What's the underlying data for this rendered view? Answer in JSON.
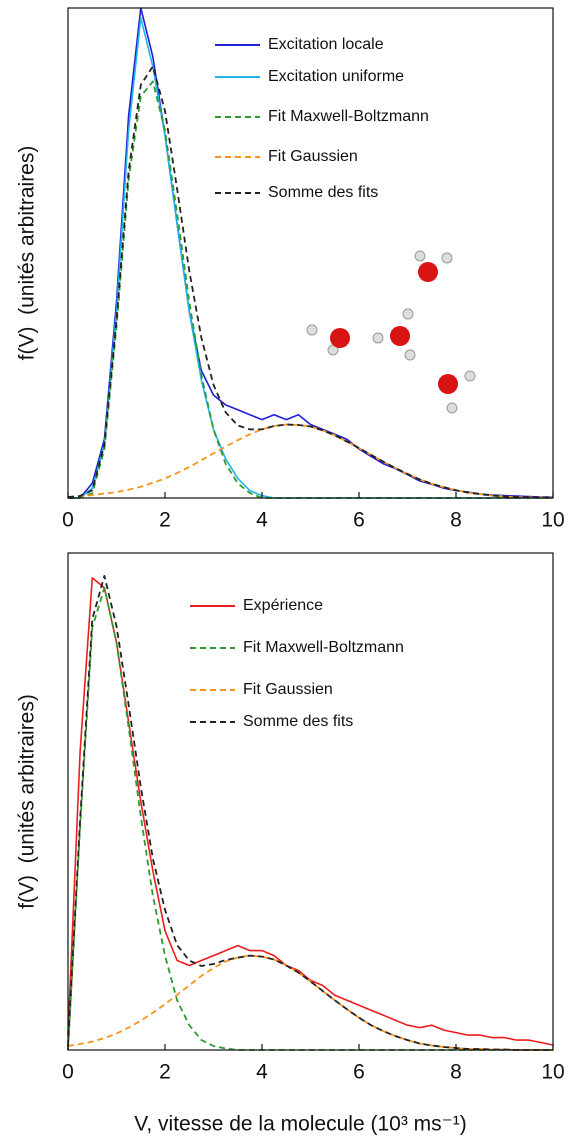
{
  "chart_data": [
    {
      "type": "line",
      "ylabel": "f(V)  (unités arbitraires)",
      "x": [
        0,
        0.25,
        0.5,
        0.75,
        1,
        1.25,
        1.5,
        1.75,
        2,
        2.25,
        2.5,
        2.75,
        3,
        3.25,
        3.5,
        3.75,
        4,
        4.25,
        4.5,
        4.75,
        5,
        5.25,
        5.5,
        5.75,
        6,
        6.25,
        6.5,
        6.75,
        7,
        7.25,
        7.5,
        7.75,
        8,
        8.25,
        8.5,
        8.75,
        9,
        9.25,
        9.5,
        9.75,
        10
      ],
      "xlim": [
        0,
        10
      ],
      "xticks": [
        0,
        2,
        4,
        6,
        8,
        10
      ],
      "ylim": [
        0,
        1
      ],
      "series": [
        {
          "name": "Excitation locale",
          "color": "#1f1fd6",
          "dashed": false,
          "values": [
            0,
            0,
            0.03,
            0.12,
            0.4,
            0.78,
            1.0,
            0.9,
            0.74,
            0.56,
            0.38,
            0.26,
            0.21,
            0.19,
            0.18,
            0.17,
            0.16,
            0.17,
            0.16,
            0.17,
            0.15,
            0.14,
            0.13,
            0.12,
            0.1,
            0.085,
            0.07,
            0.06,
            0.048,
            0.035,
            0.028,
            0.02,
            0.015,
            0.012,
            0.008,
            0.006,
            0.005,
            0.004,
            0.003,
            0.002,
            0.002
          ]
        },
        {
          "name": "Excitation uniforme",
          "color": "#20b4ee",
          "dashed": false,
          "values": [
            0,
            0,
            0.02,
            0.11,
            0.38,
            0.75,
            0.98,
            0.88,
            0.74,
            0.56,
            0.38,
            0.24,
            0.14,
            0.08,
            0.04,
            0.015,
            0.005,
            0,
            0,
            0,
            0,
            0,
            0,
            0,
            0,
            0,
            0,
            0,
            0,
            0,
            0,
            0,
            0,
            0,
            0,
            0,
            0,
            0,
            0,
            0,
            0
          ]
        },
        {
          "name": "Fit Maxwell-Boltzmann",
          "color": "#2e9a2e",
          "dashed": true,
          "values": [
            0,
            0,
            0.01,
            0.1,
            0.35,
            0.65,
            0.82,
            0.85,
            0.75,
            0.58,
            0.4,
            0.25,
            0.14,
            0.07,
            0.03,
            0.01,
            0,
            0,
            0,
            0,
            0,
            0,
            0,
            0,
            0,
            0,
            0,
            0,
            0,
            0,
            0,
            0,
            0,
            0,
            0,
            0,
            0,
            0,
            0,
            0,
            0
          ]
        },
        {
          "name": "Fit Gaussien",
          "color": "#f7941d",
          "dashed": true,
          "values": [
            0.002,
            0.004,
            0.006,
            0.009,
            0.012,
            0.017,
            0.023,
            0.031,
            0.04,
            0.051,
            0.063,
            0.077,
            0.091,
            0.105,
            0.118,
            0.13,
            0.14,
            0.147,
            0.15,
            0.149,
            0.146,
            0.138,
            0.128,
            0.115,
            0.102,
            0.088,
            0.074,
            0.061,
            0.049,
            0.038,
            0.029,
            0.022,
            0.016,
            0.011,
            0.008,
            0.005,
            0.003,
            0.002,
            0.001,
            0.001,
            0.001
          ]
        },
        {
          "name": "Somme des fits",
          "color": "#222222",
          "dashed": true,
          "values": [
            0.002,
            0.004,
            0.016,
            0.109,
            0.362,
            0.667,
            0.843,
            0.881,
            0.79,
            0.631,
            0.463,
            0.327,
            0.231,
            0.175,
            0.148,
            0.14,
            0.14,
            0.147,
            0.15,
            0.149,
            0.146,
            0.138,
            0.128,
            0.115,
            0.102,
            0.088,
            0.074,
            0.061,
            0.049,
            0.038,
            0.029,
            0.022,
            0.016,
            0.011,
            0.008,
            0.005,
            0.003,
            0.002,
            0.001,
            0.001,
            0.001
          ]
        }
      ]
    },
    {
      "type": "line",
      "ylabel": "f(V)  (unités arbitraires)",
      "xlabel": "V, vitesse de la molecule (10³ ms⁻¹)",
      "x": [
        0,
        0.25,
        0.5,
        0.75,
        1,
        1.25,
        1.5,
        1.75,
        2,
        2.25,
        2.5,
        2.75,
        3,
        3.25,
        3.5,
        3.75,
        4,
        4.25,
        4.5,
        4.75,
        5,
        5.25,
        5.5,
        5.75,
        6,
        6.25,
        6.5,
        6.75,
        7,
        7.25,
        7.5,
        7.75,
        8,
        8.25,
        8.5,
        8.75,
        9,
        9.25,
        9.5,
        9.75,
        10
      ],
      "xlim": [
        0,
        10
      ],
      "xticks": [
        0,
        2,
        4,
        6,
        8,
        10
      ],
      "ylim": [
        0,
        1
      ],
      "series": [
        {
          "name": "Expérience",
          "color": "#ee1c1c",
          "dashed": false,
          "values": [
            0.03,
            0.6,
            0.95,
            0.93,
            0.82,
            0.66,
            0.5,
            0.36,
            0.24,
            0.18,
            0.17,
            0.18,
            0.19,
            0.2,
            0.21,
            0.2,
            0.2,
            0.19,
            0.17,
            0.16,
            0.14,
            0.13,
            0.11,
            0.1,
            0.09,
            0.08,
            0.07,
            0.06,
            0.05,
            0.045,
            0.05,
            0.04,
            0.035,
            0.03,
            0.03,
            0.025,
            0.025,
            0.02,
            0.02,
            0.015,
            0.01
          ]
        },
        {
          "name": "Fit Maxwell-Boltzmann",
          "color": "#2e9a2e",
          "dashed": true,
          "values": [
            0,
            0.45,
            0.85,
            0.93,
            0.82,
            0.65,
            0.47,
            0.31,
            0.19,
            0.1,
            0.05,
            0.02,
            0.008,
            0.003,
            0,
            0,
            0,
            0,
            0,
            0,
            0,
            0,
            0,
            0,
            0,
            0,
            0,
            0,
            0,
            0,
            0,
            0,
            0,
            0,
            0,
            0,
            0,
            0,
            0,
            0,
            0
          ]
        },
        {
          "name": "Fit Gaussien",
          "color": "#f7941d",
          "dashed": true,
          "values": [
            0.008,
            0.012,
            0.017,
            0.024,
            0.033,
            0.045,
            0.059,
            0.075,
            0.092,
            0.111,
            0.13,
            0.149,
            0.165,
            0.178,
            0.186,
            0.19,
            0.188,
            0.182,
            0.17,
            0.156,
            0.138,
            0.119,
            0.1,
            0.082,
            0.065,
            0.05,
            0.038,
            0.028,
            0.02,
            0.013,
            0.009,
            0.006,
            0.004,
            0.002,
            0.002,
            0.001,
            0.001,
            0,
            0,
            0,
            0
          ]
        },
        {
          "name": "Somme des fits",
          "color": "#222222",
          "dashed": true,
          "values": [
            0.008,
            0.462,
            0.867,
            0.954,
            0.853,
            0.695,
            0.529,
            0.385,
            0.282,
            0.211,
            0.18,
            0.169,
            0.173,
            0.181,
            0.186,
            0.19,
            0.188,
            0.182,
            0.17,
            0.156,
            0.138,
            0.119,
            0.1,
            0.082,
            0.065,
            0.05,
            0.038,
            0.028,
            0.02,
            0.013,
            0.009,
            0.006,
            0.004,
            0.002,
            0.002,
            0.001,
            0.001,
            0,
            0,
            0,
            0
          ]
        }
      ]
    }
  ]
}
